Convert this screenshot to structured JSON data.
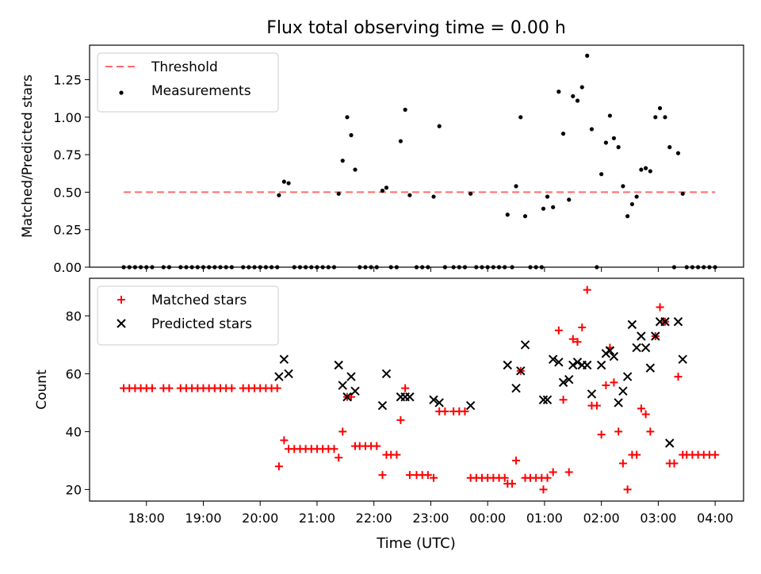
{
  "title": "Flux total observing time = 0.00 h",
  "xlabel": "Time (UTC)",
  "x_ticks": [
    "18:00",
    "19:00",
    "20:00",
    "21:00",
    "22:00",
    "23:00",
    "00:00",
    "01:00",
    "02:00",
    "03:00",
    "04:00"
  ],
  "colors": {
    "threshold": "#ff6b6b",
    "measurements": "#000000",
    "matched": "#ff0000",
    "predicted": "#000000"
  },
  "chart_data": [
    {
      "type": "scatter",
      "ylabel": "Matched/Predicted stars",
      "ylim": [
        0,
        1.48
      ],
      "yticks": [
        "0.00",
        "0.25",
        "0.50",
        "0.75",
        "1.00",
        "1.25"
      ],
      "xlim_hours": [
        17.0,
        28.5
      ],
      "legend": "top-left",
      "threshold": {
        "name": "Threshold",
        "value": 0.5,
        "x_start": 17.6,
        "x_end": 28.0
      },
      "series": [
        {
          "name": "Measurements",
          "points": [
            [
              17.6,
              0
            ],
            [
              17.7,
              0
            ],
            [
              17.8,
              0
            ],
            [
              17.9,
              0
            ],
            [
              18.0,
              0
            ],
            [
              18.1,
              0
            ],
            [
              18.3,
              0
            ],
            [
              18.4,
              0
            ],
            [
              18.6,
              0
            ],
            [
              18.7,
              0
            ],
            [
              18.8,
              0
            ],
            [
              18.9,
              0
            ],
            [
              19.0,
              0
            ],
            [
              19.1,
              0
            ],
            [
              19.2,
              0
            ],
            [
              19.3,
              0
            ],
            [
              19.4,
              0
            ],
            [
              19.5,
              0
            ],
            [
              19.7,
              0
            ],
            [
              19.8,
              0
            ],
            [
              19.9,
              0
            ],
            [
              20.0,
              0
            ],
            [
              20.1,
              0
            ],
            [
              20.2,
              0
            ],
            [
              20.3,
              0
            ],
            [
              20.33,
              0.48
            ],
            [
              20.42,
              0.57
            ],
            [
              20.5,
              0.56
            ],
            [
              20.6,
              0
            ],
            [
              20.7,
              0
            ],
            [
              20.8,
              0
            ],
            [
              20.9,
              0
            ],
            [
              21.0,
              0
            ],
            [
              21.1,
              0
            ],
            [
              21.2,
              0
            ],
            [
              21.3,
              0
            ],
            [
              21.38,
              0.49
            ],
            [
              21.45,
              0.71
            ],
            [
              21.53,
              1.0
            ],
            [
              21.6,
              0.88
            ],
            [
              21.67,
              0.65
            ],
            [
              21.75,
              0
            ],
            [
              21.85,
              0
            ],
            [
              21.95,
              0
            ],
            [
              22.05,
              0
            ],
            [
              22.15,
              0.51
            ],
            [
              22.22,
              0.53
            ],
            [
              22.3,
              0
            ],
            [
              22.4,
              0
            ],
            [
              22.47,
              0.84
            ],
            [
              22.55,
              1.05
            ],
            [
              22.63,
              0.48
            ],
            [
              22.75,
              0
            ],
            [
              22.85,
              0
            ],
            [
              22.95,
              0
            ],
            [
              23.05,
              0.47
            ],
            [
              23.15,
              0.94
            ],
            [
              23.25,
              0
            ],
            [
              23.4,
              0
            ],
            [
              23.5,
              0
            ],
            [
              23.6,
              0
            ],
            [
              23.7,
              0.49
            ],
            [
              23.8,
              0
            ],
            [
              23.9,
              0
            ],
            [
              24.0,
              0
            ],
            [
              24.1,
              0
            ],
            [
              24.2,
              0
            ],
            [
              24.3,
              0
            ],
            [
              24.35,
              0.35
            ],
            [
              24.43,
              0
            ],
            [
              24.5,
              0.54
            ],
            [
              24.58,
              1.0
            ],
            [
              24.66,
              0.34
            ],
            [
              24.75,
              0
            ],
            [
              24.85,
              0
            ],
            [
              24.95,
              0
            ],
            [
              24.98,
              0.39
            ],
            [
              25.05,
              0.47
            ],
            [
              25.15,
              0.4
            ],
            [
              25.25,
              1.17
            ],
            [
              25.33,
              0.89
            ],
            [
              25.43,
              0.45
            ],
            [
              25.5,
              1.14
            ],
            [
              25.58,
              1.11
            ],
            [
              25.66,
              1.2
            ],
            [
              25.75,
              1.41
            ],
            [
              25.83,
              0.92
            ],
            [
              25.92,
              0
            ],
            [
              26.0,
              0.62
            ],
            [
              26.08,
              0.83
            ],
            [
              26.15,
              1.01
            ],
            [
              26.22,
              0.86
            ],
            [
              26.3,
              0.8
            ],
            [
              26.38,
              0.54
            ],
            [
              26.46,
              0.34
            ],
            [
              26.54,
              0.42
            ],
            [
              26.62,
              0.47
            ],
            [
              26.7,
              0.65
            ],
            [
              26.78,
              0.66
            ],
            [
              26.86,
              0.64
            ],
            [
              26.95,
              1.0
            ],
            [
              27.03,
              1.06
            ],
            [
              27.12,
              1.0
            ],
            [
              27.2,
              0.8
            ],
            [
              27.28,
              0
            ],
            [
              27.35,
              0.76
            ],
            [
              27.43,
              0.49
            ],
            [
              27.5,
              0
            ],
            [
              27.6,
              0
            ],
            [
              27.7,
              0
            ],
            [
              27.8,
              0
            ],
            [
              27.9,
              0
            ],
            [
              28.0,
              0
            ]
          ]
        }
      ]
    },
    {
      "type": "scatter",
      "ylabel": "Count",
      "ylim": [
        16,
        93
      ],
      "yticks": [
        "20",
        "40",
        "60",
        "80"
      ],
      "xlim_hours": [
        17.0,
        28.5
      ],
      "legend": "top-left",
      "series": [
        {
          "name": "Matched stars",
          "marker": "plus",
          "points": [
            [
              17.6,
              55
            ],
            [
              17.7,
              55
            ],
            [
              17.8,
              55
            ],
            [
              17.9,
              55
            ],
            [
              18.0,
              55
            ],
            [
              18.1,
              55
            ],
            [
              18.3,
              55
            ],
            [
              18.4,
              55
            ],
            [
              18.6,
              55
            ],
            [
              18.7,
              55
            ],
            [
              18.8,
              55
            ],
            [
              18.9,
              55
            ],
            [
              19.0,
              55
            ],
            [
              19.1,
              55
            ],
            [
              19.2,
              55
            ],
            [
              19.3,
              55
            ],
            [
              19.4,
              55
            ],
            [
              19.5,
              55
            ],
            [
              19.7,
              55
            ],
            [
              19.8,
              55
            ],
            [
              19.9,
              55
            ],
            [
              20.0,
              55
            ],
            [
              20.1,
              55
            ],
            [
              20.2,
              55
            ],
            [
              20.3,
              55
            ],
            [
              20.33,
              28
            ],
            [
              20.42,
              37
            ],
            [
              20.5,
              34
            ],
            [
              20.6,
              34
            ],
            [
              20.7,
              34
            ],
            [
              20.8,
              34
            ],
            [
              20.9,
              34
            ],
            [
              21.0,
              34
            ],
            [
              21.1,
              34
            ],
            [
              21.2,
              34
            ],
            [
              21.3,
              34
            ],
            [
              21.38,
              31
            ],
            [
              21.45,
              40
            ],
            [
              21.53,
              52
            ],
            [
              21.6,
              52
            ],
            [
              21.67,
              35
            ],
            [
              21.75,
              35
            ],
            [
              21.85,
              35
            ],
            [
              21.95,
              35
            ],
            [
              22.05,
              35
            ],
            [
              22.15,
              25
            ],
            [
              22.22,
              32
            ],
            [
              22.3,
              32
            ],
            [
              22.4,
              32
            ],
            [
              22.47,
              44
            ],
            [
              22.55,
              55
            ],
            [
              22.63,
              25
            ],
            [
              22.75,
              25
            ],
            [
              22.85,
              25
            ],
            [
              22.95,
              25
            ],
            [
              23.05,
              24
            ],
            [
              23.15,
              47
            ],
            [
              23.25,
              47
            ],
            [
              23.4,
              47
            ],
            [
              23.5,
              47
            ],
            [
              23.6,
              47
            ],
            [
              23.7,
              24
            ],
            [
              23.8,
              24
            ],
            [
              23.9,
              24
            ],
            [
              24.0,
              24
            ],
            [
              24.1,
              24
            ],
            [
              24.2,
              24
            ],
            [
              24.3,
              24
            ],
            [
              24.35,
              22
            ],
            [
              24.43,
              22
            ],
            [
              24.5,
              30
            ],
            [
              24.58,
              61
            ],
            [
              24.66,
              24
            ],
            [
              24.75,
              24
            ],
            [
              24.85,
              24
            ],
            [
              24.95,
              24
            ],
            [
              24.98,
              20
            ],
            [
              25.05,
              24
            ],
            [
              25.15,
              26
            ],
            [
              25.25,
              75
            ],
            [
              25.33,
              51
            ],
            [
              25.43,
              26
            ],
            [
              25.5,
              72
            ],
            [
              25.58,
              71
            ],
            [
              25.66,
              76
            ],
            [
              25.75,
              89
            ],
            [
              25.83,
              49
            ],
            [
              25.92,
              49
            ],
            [
              26.0,
              39
            ],
            [
              26.08,
              56
            ],
            [
              26.15,
              69
            ],
            [
              26.22,
              57
            ],
            [
              26.3,
              40
            ],
            [
              26.38,
              29
            ],
            [
              26.46,
              20
            ],
            [
              26.54,
              32
            ],
            [
              26.62,
              32
            ],
            [
              26.7,
              48
            ],
            [
              26.78,
              46
            ],
            [
              26.86,
              40
            ],
            [
              26.95,
              73
            ],
            [
              27.03,
              83
            ],
            [
              27.12,
              78
            ],
            [
              27.2,
              29
            ],
            [
              27.28,
              29
            ],
            [
              27.35,
              59
            ],
            [
              27.43,
              32
            ],
            [
              27.5,
              32
            ],
            [
              27.6,
              32
            ],
            [
              27.7,
              32
            ],
            [
              27.8,
              32
            ],
            [
              27.9,
              32
            ],
            [
              28.0,
              32
            ]
          ]
        },
        {
          "name": "Predicted stars",
          "marker": "x",
          "points": [
            [
              20.33,
              59
            ],
            [
              20.42,
              65
            ],
            [
              20.5,
              60
            ],
            [
              21.38,
              63
            ],
            [
              21.45,
              56
            ],
            [
              21.53,
              52
            ],
            [
              21.6,
              59
            ],
            [
              21.67,
              54
            ],
            [
              22.15,
              49
            ],
            [
              22.22,
              60
            ],
            [
              22.47,
              52
            ],
            [
              22.55,
              52
            ],
            [
              22.63,
              52
            ],
            [
              23.05,
              51
            ],
            [
              23.15,
              50
            ],
            [
              23.7,
              49
            ],
            [
              24.35,
              63
            ],
            [
              24.5,
              55
            ],
            [
              24.58,
              61
            ],
            [
              24.66,
              70
            ],
            [
              24.98,
              51
            ],
            [
              25.05,
              51
            ],
            [
              25.15,
              65
            ],
            [
              25.25,
              64
            ],
            [
              25.33,
              57
            ],
            [
              25.43,
              58
            ],
            [
              25.5,
              63
            ],
            [
              25.58,
              64
            ],
            [
              25.66,
              63
            ],
            [
              25.75,
              63
            ],
            [
              25.83,
              53
            ],
            [
              26.0,
              63
            ],
            [
              26.08,
              67
            ],
            [
              26.15,
              68
            ],
            [
              26.22,
              66
            ],
            [
              26.3,
              50
            ],
            [
              26.38,
              54
            ],
            [
              26.46,
              59
            ],
            [
              26.54,
              77
            ],
            [
              26.62,
              69
            ],
            [
              26.7,
              73
            ],
            [
              26.78,
              69
            ],
            [
              26.86,
              62
            ],
            [
              26.95,
              73
            ],
            [
              27.03,
              78
            ],
            [
              27.12,
              78
            ],
            [
              27.2,
              36
            ],
            [
              27.35,
              78
            ],
            [
              27.43,
              65
            ]
          ]
        }
      ]
    }
  ]
}
